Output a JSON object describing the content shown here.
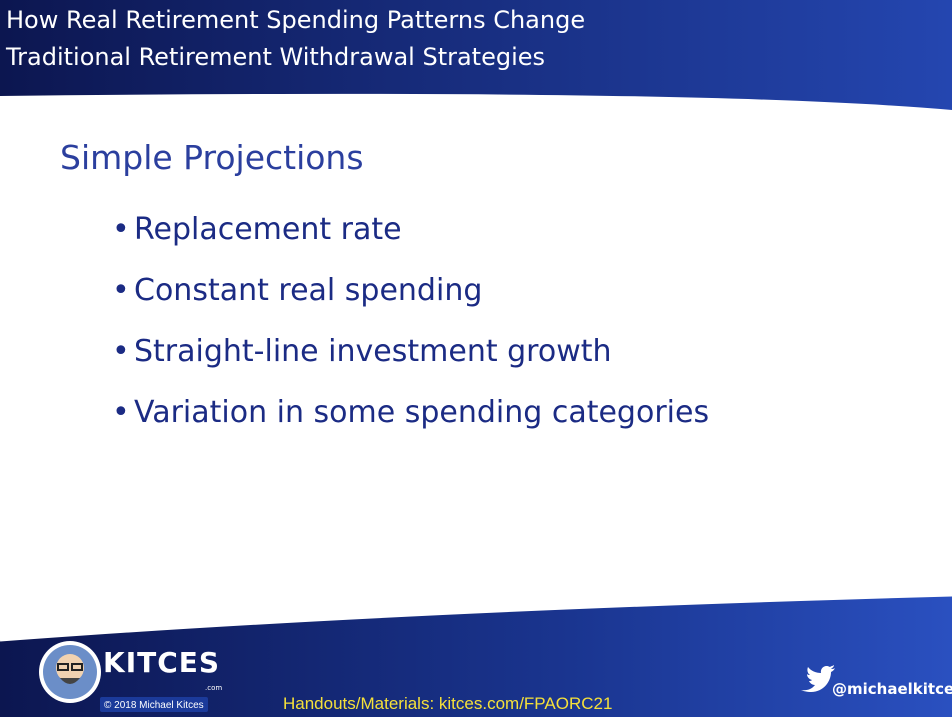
{
  "header": {
    "title_lines": [
      "How Real Retirement Spending Patterns Change",
      "Traditional Retirement Withdrawal Strategies"
    ]
  },
  "slide": {
    "title": "Simple Projections",
    "bullets": [
      "Replacement rate",
      "Constant real spending",
      "Straight-line investment growth",
      "Variation in some spending categories"
    ]
  },
  "footer": {
    "logo_text": "KITCES",
    "logo_sub": ".com",
    "copyright": "© 2018 Michael Kitces",
    "handouts": "Handouts/Materials: kitces.com/FPAORC21",
    "twitter": "@michaelkitces"
  }
}
